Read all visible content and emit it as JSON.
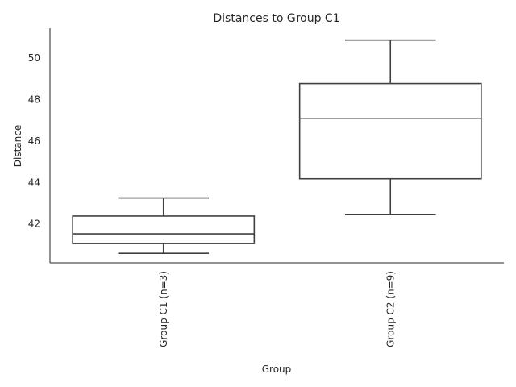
{
  "chart_data": {
    "type": "box",
    "title": "Distances to Group C1",
    "xlabel": "Group",
    "ylabel": "Distance",
    "ylim": [
      40.12,
      51.45
    ],
    "yticks": [
      42,
      44,
      46,
      48,
      50
    ],
    "grid": false,
    "categories": [
      "Group C1 (n=3)",
      "Group C2 (n=9)"
    ],
    "boxes": [
      {
        "category": "Group C1 (n=3)",
        "whisker_low": 40.58,
        "q1": 41.05,
        "median": 41.52,
        "q3": 42.38,
        "whisker_high": 43.25
      },
      {
        "category": "Group C2 (n=9)",
        "whisker_low": 42.45,
        "q1": 44.18,
        "median": 47.08,
        "q3": 48.78,
        "whisker_high": 50.88
      }
    ]
  }
}
